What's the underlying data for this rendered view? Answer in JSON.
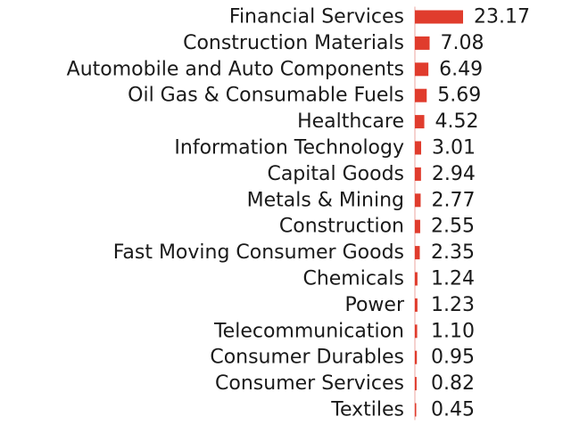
{
  "chart_data": {
    "type": "bar",
    "orientation": "horizontal",
    "categories": [
      "Financial Services",
      "Construction Materials",
      "Automobile and Auto Components",
      "Oil Gas & Consumable Fuels",
      "Healthcare",
      "Information Technology",
      "Capital Goods",
      "Metals & Mining",
      "Construction",
      "Fast Moving Consumer Goods",
      "Chemicals",
      "Power",
      "Telecommunication",
      "Consumer Durables",
      "Consumer Services",
      "Textiles"
    ],
    "values": [
      23.17,
      7.08,
      6.49,
      5.69,
      4.52,
      3.01,
      2.94,
      2.77,
      2.55,
      2.35,
      1.24,
      1.23,
      1.1,
      0.95,
      0.82,
      0.45
    ],
    "value_labels": [
      "23.17",
      "7.08",
      "6.49",
      "5.69",
      "4.52",
      "3.01",
      "2.94",
      "2.77",
      "2.55",
      "2.35",
      "1.24",
      "1.23",
      "1.10",
      "0.95",
      "0.82",
      "0.45"
    ],
    "title": "",
    "xlabel": "",
    "ylabel": "",
    "xlim": [
      0,
      23.17
    ],
    "grid": false,
    "legend": "none",
    "bar_color": "#e03c2d",
    "baseline_color": "#f2c4bf"
  }
}
